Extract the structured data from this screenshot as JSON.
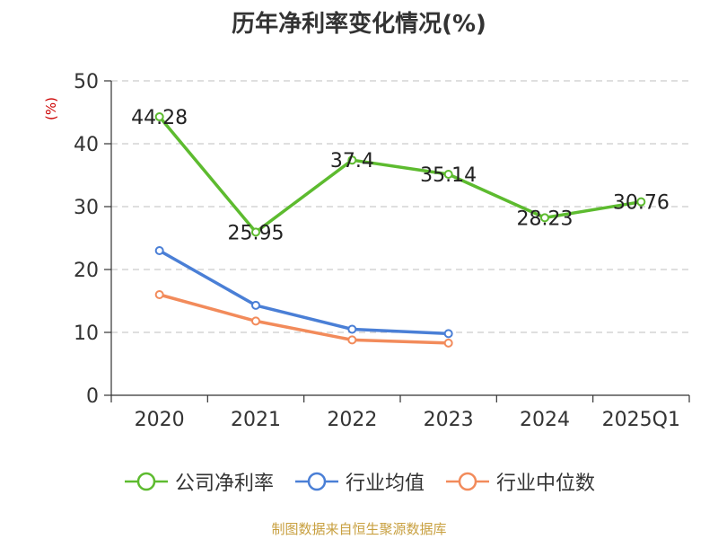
{
  "chart_data": {
    "type": "line",
    "title": "历年净利率变化情况(%)",
    "ylabel": "(%)",
    "xlabel": "",
    "categories": [
      "2020",
      "2021",
      "2022",
      "2023",
      "2024",
      "2025Q1"
    ],
    "ylim": [
      0,
      50
    ],
    "yticks": [
      0,
      10,
      20,
      30,
      40,
      50
    ],
    "grid": true,
    "legend_position": "bottom",
    "series": [
      {
        "name": "公司净利率",
        "color": "#5dbb2f",
        "values": [
          44.28,
          25.95,
          37.4,
          35.14,
          28.23,
          30.76
        ],
        "labels": [
          "44.28",
          "25.95",
          "37.4",
          "35.14",
          "28.23",
          "30.76"
        ]
      },
      {
        "name": "行业均值",
        "color": "#4a7fd6",
        "values": [
          23.0,
          14.3,
          10.5,
          9.8,
          null,
          null
        ]
      },
      {
        "name": "行业中位数",
        "color": "#f28b5b",
        "values": [
          16.0,
          11.8,
          8.8,
          8.3,
          null,
          null
        ]
      }
    ]
  },
  "source": "制图数据来自恒生聚源数据库"
}
